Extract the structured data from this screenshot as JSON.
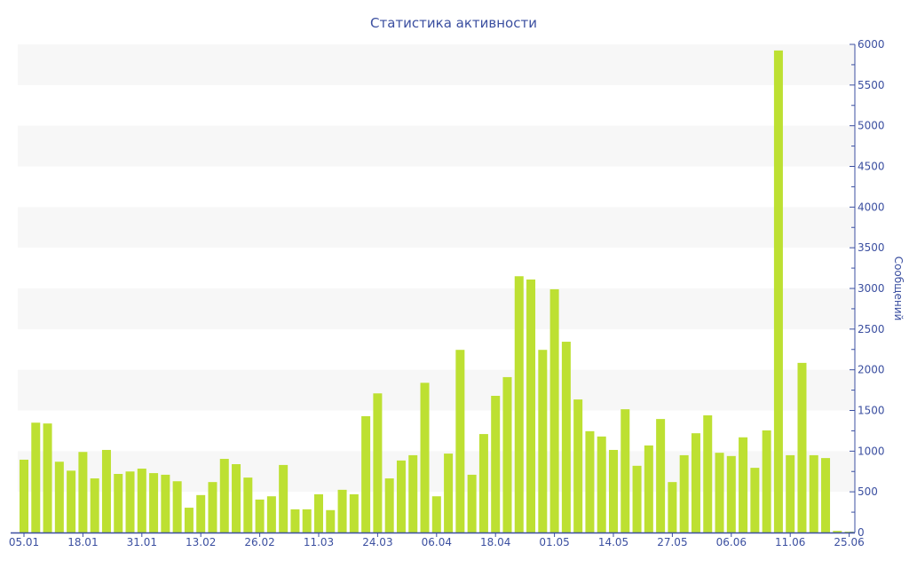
{
  "chart_data": {
    "type": "bar",
    "title": "Статистика активности",
    "xlabel": "",
    "ylabel": "Сообщений",
    "ylim": [
      0,
      6000
    ],
    "yticks": [
      0,
      500,
      1000,
      1500,
      2000,
      2500,
      3000,
      3500,
      4000,
      4500,
      5000,
      5500,
      6000
    ],
    "y_axis_side": "right",
    "grid": "alternating bands",
    "legend": "none",
    "colors": {
      "bar": "#bde032",
      "axis": "#3b4fa0",
      "band": "#f7f7f7"
    },
    "x_tick_labels": [
      "05.01",
      "18.01",
      "31.01",
      "13.02",
      "26.02",
      "11.03",
      "24.03",
      "06.04",
      "18.04",
      "01.05",
      "14.05",
      "27.05",
      "06.06",
      "11.06",
      "25.06"
    ],
    "x_tick_bar_index": [
      0,
      5,
      10,
      15,
      20,
      25,
      30,
      35,
      40,
      45,
      50,
      55,
      60,
      65,
      70
    ],
    "values": [
      895,
      1350,
      1340,
      870,
      760,
      990,
      665,
      1015,
      720,
      750,
      785,
      730,
      710,
      630,
      305,
      460,
      620,
      905,
      840,
      675,
      405,
      445,
      830,
      285,
      285,
      470,
      275,
      525,
      470,
      1430,
      1710,
      665,
      885,
      950,
      1840,
      445,
      970,
      2245,
      710,
      1210,
      1680,
      1910,
      3150,
      3110,
      2245,
      2990,
      2345,
      1635,
      1245,
      1180,
      1015,
      1515,
      820,
      1070,
      1395,
      620,
      950,
      1220,
      1440,
      980,
      940,
      1170,
      795,
      1255,
      5925,
      950,
      2085,
      950,
      915,
      20,
      10
    ]
  }
}
